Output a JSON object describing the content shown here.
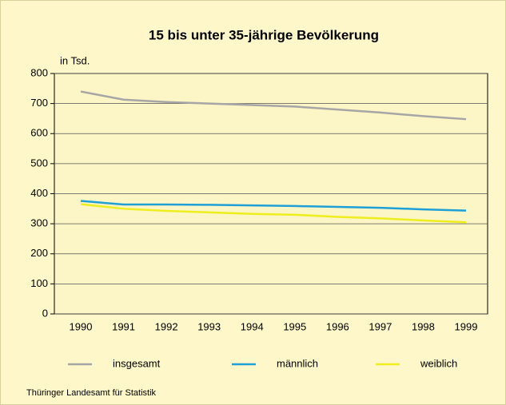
{
  "chart_data": {
    "type": "line",
    "title": "15 bis unter 35-jährige Bevölkerung",
    "y_label": "in Tsd.",
    "categories": [
      "1990",
      "1991",
      "1992",
      "1993",
      "1994",
      "1995",
      "1996",
      "1997",
      "1998",
      "1999"
    ],
    "series": [
      {
        "name": "insgesamt",
        "color": "#a6a6a6",
        "values": [
          740,
          713,
          705,
          700,
          695,
          690,
          680,
          670,
          658,
          648
        ]
      },
      {
        "name": "männlich",
        "color": "#1ea0d6",
        "values": [
          376,
          364,
          364,
          363,
          361,
          359,
          356,
          353,
          348,
          344
        ]
      },
      {
        "name": "weiblich",
        "color": "#eeee1e",
        "values": [
          365,
          350,
          343,
          338,
          333,
          330,
          323,
          318,
          311,
          305
        ]
      }
    ],
    "ylim": [
      0,
      800
    ],
    "yticks": [
      0,
      100,
      200,
      300,
      400,
      500,
      600,
      700,
      800
    ],
    "grid": true,
    "source": "Thüringer Landesamt für Statistik"
  }
}
